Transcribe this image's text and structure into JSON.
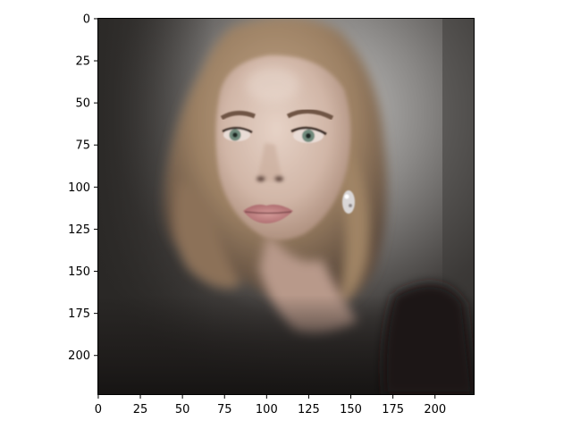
{
  "figure": {
    "background": "#ffffff",
    "image_shape": [
      224,
      224
    ],
    "image_description": "portrait photo of a woman with shoulder-length wavy blonde hair, green eyes, pink lips and a drop earring, on a dark vignetted background",
    "x_axis": {
      "ticks": [
        0,
        25,
        50,
        75,
        100,
        125,
        150,
        175,
        200
      ],
      "range": [
        -0.5,
        223.5
      ]
    },
    "y_axis": {
      "ticks": [
        0,
        25,
        50,
        75,
        100,
        125,
        150,
        175,
        200
      ],
      "range": [
        -0.5,
        223.5
      ],
      "inverted": true
    },
    "colors": {
      "frame": "#000000",
      "background_dark": "#2f2c2a",
      "background_light": "#c6c5c3",
      "hair": "#9d8264",
      "skin": "#d2b8aa",
      "lips": "#c07f80",
      "eyes": "#6f8a7c"
    }
  }
}
